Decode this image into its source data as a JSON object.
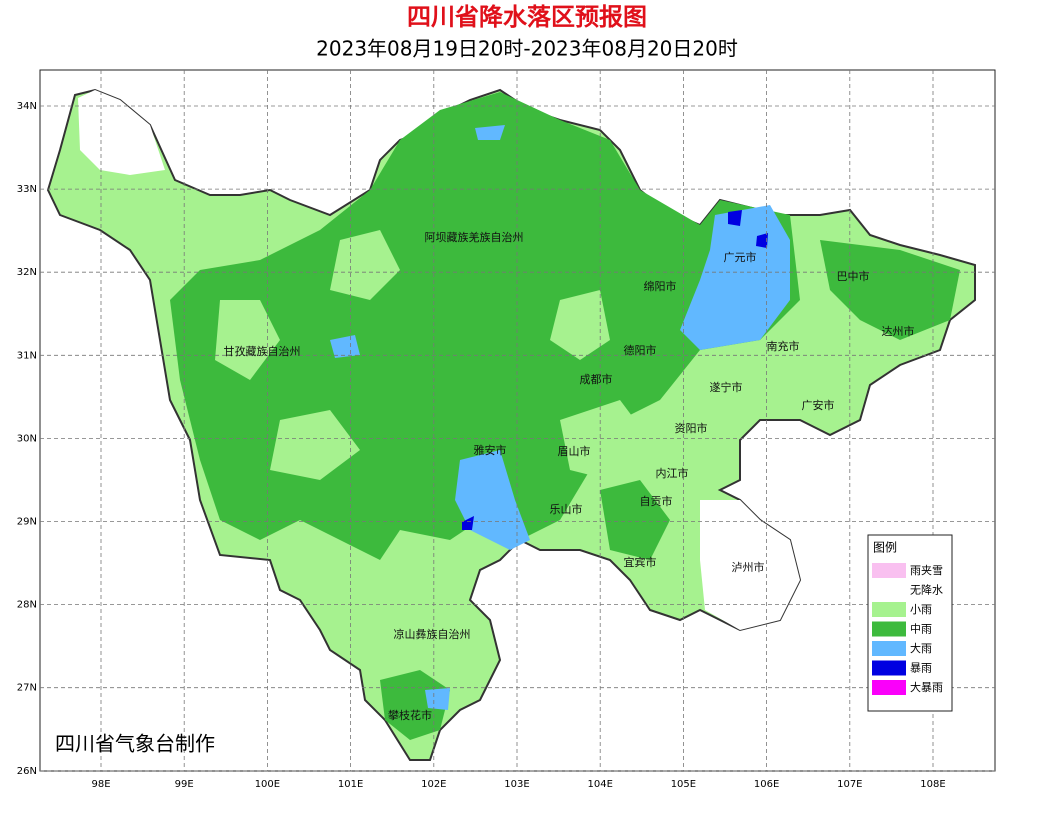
{
  "header": {
    "title": "四川省降水落区预报图",
    "subtitle": "2023年08月19日20时-2023年08月20日20时"
  },
  "axes": {
    "lon_labels": [
      "98E",
      "99E",
      "100E",
      "101E",
      "102E",
      "103E",
      "104E",
      "105E",
      "106E",
      "107E",
      "108E"
    ],
    "lat_labels": [
      "34N",
      "33N",
      "32N",
      "31N",
      "30N",
      "29N",
      "28N",
      "27N",
      "26N"
    ]
  },
  "cities": [
    "阿坝藏族羌族自治州",
    "甘孜藏族自治州",
    "广元市",
    "巴中市",
    "绵阳市",
    "达州市",
    "德阳市",
    "南充市",
    "成都市",
    "遂宁市",
    "广安市",
    "资阳市",
    "雅安市",
    "眉山市",
    "内江市",
    "自贡市",
    "乐山市",
    "宜宾市",
    "泸州市",
    "凉山彝族自治州",
    "攀枝花市"
  ],
  "legend": {
    "title": "图例",
    "items": [
      {
        "label": "雨夹雪",
        "color": "#f9c0f0"
      },
      {
        "label": "无降水",
        "color": "#ffffff"
      },
      {
        "label": "小雨",
        "color": "#a6f28f"
      },
      {
        "label": "中雨",
        "color": "#3dba3d"
      },
      {
        "label": "大雨",
        "color": "#61b8ff"
      },
      {
        "label": "暴雨",
        "color": "#0000e1"
      },
      {
        "label": "大暴雨",
        "color": "#fa00fa"
      }
    ]
  },
  "footer": {
    "credit": "四川省气象台制作"
  }
}
